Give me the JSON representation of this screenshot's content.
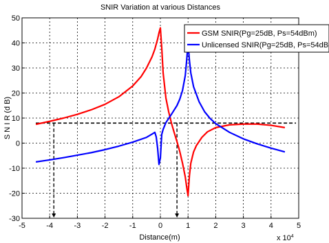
{
  "chart_data": {
    "type": "line",
    "title": "SNIR Variation at various Distances",
    "xlabel": "Distance(m)",
    "ylabel": "S N I R (d B)",
    "x_exponent_label": "x 10",
    "x_exponent_power": "4",
    "xlim": [
      -5,
      5
    ],
    "ylim": [
      -30,
      50
    ],
    "x_ticks": [
      -5,
      -4,
      -3,
      -2,
      -1,
      0,
      1,
      2,
      3,
      4,
      5
    ],
    "y_ticks": [
      -30,
      -20,
      -10,
      0,
      10,
      20,
      30,
      40,
      50
    ],
    "grid": true,
    "legend_position": "top-right",
    "series": [
      {
        "name": "GSM SNIR(Pg=25dB, Ps=54dBm)",
        "color": "#ff0000",
        "x": [
          -4.5,
          -4.0,
          -3.5,
          -3.0,
          -2.5,
          -2.0,
          -1.5,
          -1.0,
          -0.7,
          -0.5,
          -0.3,
          -0.2,
          -0.1,
          -0.05,
          0.0,
          0.05,
          0.1,
          0.2,
          0.3,
          0.4,
          0.5,
          0.6,
          0.7,
          0.8,
          0.9,
          0.95,
          1.0,
          1.05,
          1.1,
          1.2,
          1.3,
          1.5,
          1.7,
          2.0,
          2.5,
          3.0,
          3.5,
          4.0,
          4.5
        ],
        "y": [
          7.5,
          8.7,
          10.0,
          11.5,
          13.3,
          15.5,
          18.5,
          22.8,
          26.5,
          30.0,
          34.5,
          37.5,
          41.5,
          44.0,
          46.0,
          38.0,
          28.0,
          18.0,
          12.5,
          8.0,
          4.2,
          0.6,
          -3.3,
          -8.0,
          -13.5,
          -17.5,
          -21.0,
          -13.0,
          -8.0,
          -3.5,
          -1.0,
          2.3,
          4.5,
          6.2,
          7.3,
          7.6,
          7.6,
          7.1,
          6.2
        ]
      },
      {
        "name": "Unlicensed SNIR(Pg=25dB, Ps=54dBm)",
        "color": "#0000ff",
        "x": [
          -4.5,
          -4.0,
          -3.5,
          -3.0,
          -2.5,
          -2.0,
          -1.5,
          -1.0,
          -0.5,
          -0.3,
          -0.2,
          -0.15,
          -0.1,
          -0.05,
          0.0,
          0.05,
          0.1,
          0.2,
          0.4,
          0.6,
          0.7,
          0.8,
          0.9,
          0.95,
          1.0,
          1.05,
          1.1,
          1.2,
          1.4,
          1.6,
          1.8,
          2.0,
          2.5,
          3.0,
          3.5,
          4.0,
          4.5
        ],
        "y": [
          -7.5,
          -6.7,
          -5.8,
          -4.8,
          -3.8,
          -2.6,
          -1.2,
          0.4,
          2.3,
          3.6,
          4.3,
          2.5,
          -2.0,
          -8.5,
          -6.0,
          3.5,
          5.5,
          8.2,
          11.5,
          15.0,
          17.5,
          21.0,
          27.0,
          33.0,
          40.0,
          33.0,
          28.0,
          22.5,
          16.5,
          12.5,
          9.8,
          7.8,
          4.3,
          1.7,
          -0.3,
          -2.0,
          -3.5
        ]
      }
    ],
    "annotations": {
      "reference_y": 8,
      "reference_x_start": -4.5,
      "reference_x_end": 5,
      "drop_x": [
        -3.85,
        0.6
      ]
    }
  }
}
